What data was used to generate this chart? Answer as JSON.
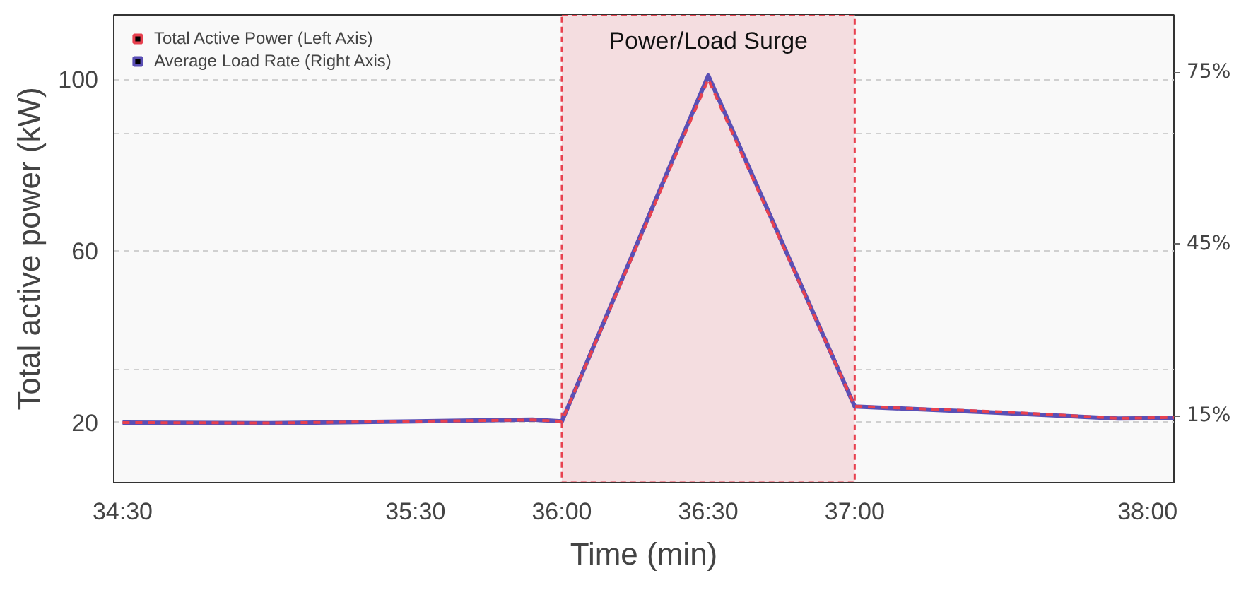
{
  "chart_data": {
    "type": "line",
    "xlabel": "Time (min)",
    "ylabel": "Total active power (kW)",
    "xlim": [
      34.47,
      38.09
    ],
    "ylim": [
      6,
      115
    ],
    "y2lim": [
      3.3,
      85
    ],
    "xticks": [
      {
        "value": 34.5,
        "label": "34:30"
      },
      {
        "value": 35.5,
        "label": "35:30"
      },
      {
        "value": 36.0,
        "label": "36:00"
      },
      {
        "value": 36.5,
        "label": "36:30"
      },
      {
        "value": 37.0,
        "label": "37:00"
      },
      {
        "value": 38.0,
        "label": "38:00"
      }
    ],
    "yticks": [
      20,
      {
        "value": 32.5,
        "label": null
      },
      60,
      {
        "value": 87.5,
        "label": null
      },
      100
    ],
    "y2ticks": [
      {
        "value": 15,
        "label": "15%"
      },
      {
        "value": 45,
        "label": "45%"
      },
      {
        "value": 75,
        "label": "75%"
      }
    ],
    "x": [
      34.5,
      35.0,
      35.5,
      35.9,
      36.0,
      36.5,
      37.0,
      37.5,
      37.9,
      38.09
    ],
    "series": [
      {
        "name": "Average Load Rate (Right Axis)",
        "color": "#5a4fb5",
        "axis": "y2",
        "line_style": "solid",
        "values": [
          13.8,
          13.7,
          14.0,
          14.3,
          14.0,
          74.4,
          16.6,
          15.5,
          14.5,
          14.6
        ]
      },
      {
        "name": "Total Active Power (Left Axis)",
        "color": "#e8414f",
        "line_style": "dashed",
        "values": [
          20.0,
          19.9,
          20.3,
          20.6,
          20.3,
          100,
          23.8,
          22.5,
          21.0,
          21.2
        ]
      }
    ],
    "bands": [
      {
        "axis": "x",
        "from": 36.0,
        "to": 37.0,
        "label": "Power/Load Surge",
        "color": "#f4dde0"
      }
    ],
    "grid": "y",
    "legend": "top left"
  }
}
